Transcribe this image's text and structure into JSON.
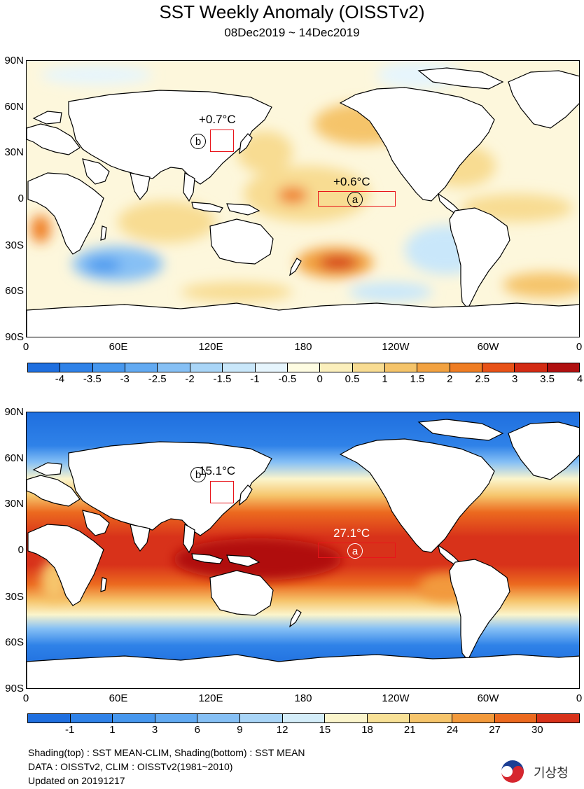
{
  "title": "SST Weekly Anomaly (OISSTv2)",
  "subtitle": "08Dec2019 ~ 14Dec2019",
  "lat_labels": [
    "90N",
    "60N",
    "30N",
    "0",
    "30S",
    "60S",
    "90S"
  ],
  "lon_labels": [
    "0",
    "60E",
    "120E",
    "180",
    "120W",
    "60W",
    "0"
  ],
  "top_map": {
    "name": "SST anomaly map",
    "annotations": {
      "a_value": "+0.6°C",
      "b_value": "+0.7°C",
      "a_marker": "a",
      "b_marker": "b"
    },
    "colorbar_labels": [
      "-4",
      "-3.5",
      "-3",
      "-2.5",
      "-2",
      "-1.5",
      "-1",
      "-0.5",
      "0",
      "0.5",
      "1",
      "1.5",
      "2",
      "2.5",
      "3",
      "3.5",
      "4"
    ],
    "colorbar_colors": [
      "#1f6fdf",
      "#2f82e8",
      "#4697ee",
      "#62aaf2",
      "#86c0f5",
      "#a9d5f7",
      "#c9e7fa",
      "#e6f5fd",
      "#fefce2",
      "#fbefbc",
      "#f8dc92",
      "#f5c46a",
      "#f2a241",
      "#ef7d23",
      "#e85217",
      "#d32b13",
      "#b01010"
    ]
  },
  "bottom_map": {
    "name": "SST mean map",
    "annotations": {
      "a_value": "27.1°C",
      "b_value": "15.1°C",
      "a_marker": "a",
      "b_marker": "b"
    },
    "colorbar_labels": [
      "-1",
      "1",
      "3",
      "6",
      "9",
      "12",
      "15",
      "18",
      "21",
      "24",
      "27",
      "30"
    ],
    "colorbar_colors": [
      "#1f6fdf",
      "#2f82e8",
      "#4697ee",
      "#62aaf2",
      "#86c0f5",
      "#a9d5f7",
      "#d4edf9",
      "#fbf5cc",
      "#f8e197",
      "#f6c56c",
      "#f29a3c",
      "#ec6a1f",
      "#d8321a"
    ]
  },
  "footer": {
    "line1": "Shading(top) : SST MEAN-CLIM, Shading(bottom) : SST MEAN",
    "line2": "DATA : OISSTv2, CLIM : OISSTv2(1981~2010)",
    "line3": "Updated on 20191217"
  },
  "logo_text": "기상청"
}
